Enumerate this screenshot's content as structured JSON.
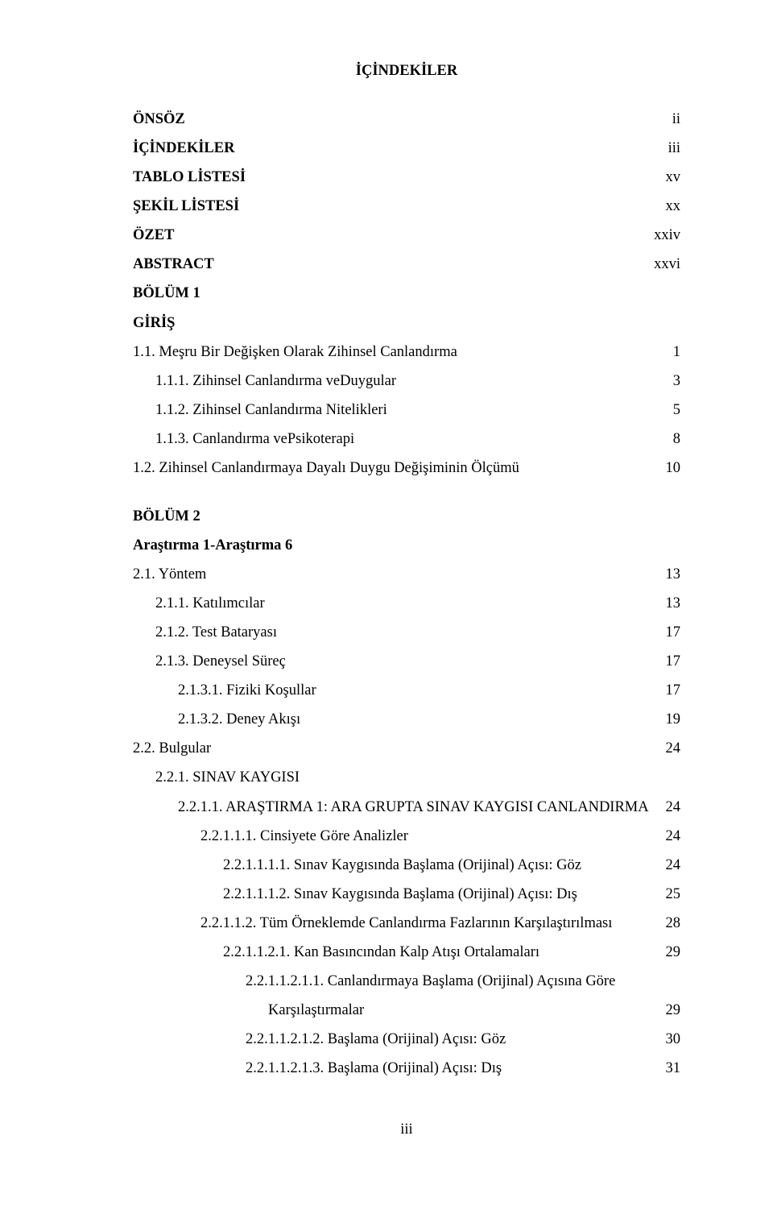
{
  "title": "İÇİNDEKİLER",
  "rows": [
    {
      "label": "ÖNSÖZ",
      "page": "ii",
      "bold": true,
      "indent": 0
    },
    {
      "label": "İÇİNDEKİLER",
      "page": "iii",
      "bold": true,
      "indent": 0
    },
    {
      "label": "TABLO LİSTESİ",
      "page": "xv",
      "bold": true,
      "indent": 0
    },
    {
      "label": "ŞEKİL LİSTESİ",
      "page": "xx",
      "bold": true,
      "indent": 0
    },
    {
      "label": "ÖZET",
      "page": "xxiv",
      "bold": true,
      "indent": 0
    },
    {
      "label": "ABSTRACT",
      "page": "xxvi",
      "bold": true,
      "indent": 0
    },
    {
      "label": "BÖLÜM 1",
      "page": "",
      "bold": true,
      "indent": 0
    },
    {
      "label": "GİRİŞ",
      "page": "",
      "bold": true,
      "indent": 0
    },
    {
      "label": "1.1. Meşru Bir Değişken Olarak Zihinsel Canlandırma",
      "page": "1",
      "bold": false,
      "indent": 0
    },
    {
      "label": "1.1.1. Zihinsel Canlandırma veDuygular",
      "page": "3",
      "bold": false,
      "indent": 1
    },
    {
      "label": "1.1.2. Zihinsel Canlandırma Nitelikleri",
      "page": "5",
      "bold": false,
      "indent": 1
    },
    {
      "label": "1.1.3. Canlandırma vePsikoterapi",
      "page": "8",
      "bold": false,
      "indent": 1
    },
    {
      "label": "1.2. Zihinsel Canlandırmaya Dayalı Duygu Değişiminin Ölçümü",
      "page": "10",
      "bold": false,
      "indent": 0
    },
    {
      "gap": true
    },
    {
      "label": "BÖLÜM 2",
      "page": "",
      "bold": true,
      "indent": 0
    },
    {
      "label": "Araştırma 1-Araştırma 6",
      "page": "",
      "bold": true,
      "indent": 0
    },
    {
      "label": "2.1. Yöntem",
      "page": "13",
      "bold": false,
      "indent": 0
    },
    {
      "label": "2.1.1. Katılımcılar",
      "page": "13",
      "bold": false,
      "indent": 1
    },
    {
      "label": "2.1.2. Test Bataryası",
      "page": "17",
      "bold": false,
      "indent": 1
    },
    {
      "label": "2.1.3. Deneysel Süreç",
      "page": "17",
      "bold": false,
      "indent": 1
    },
    {
      "label": "2.1.3.1. Fiziki Koşullar",
      "page": "17",
      "bold": false,
      "indent": 2
    },
    {
      "label": "2.1.3.2. Deney Akışı",
      "page": "19",
      "bold": false,
      "indent": 2
    },
    {
      "label": "2.2. Bulgular",
      "page": "24",
      "bold": false,
      "indent": 0
    },
    {
      "label": "2.2.1.    SINAV KAYGISI",
      "page": "",
      "bold": false,
      "indent": 1
    },
    {
      "label": "2.2.1.1. ARAŞTIRMA 1: ARA GRUPTA SINAV KAYGISI CANLANDIRMA",
      "page": "24",
      "bold": false,
      "indent": 2
    },
    {
      "label": "2.2.1.1.1. Cinsiyete Göre Analizler",
      "page": "24",
      "bold": false,
      "indent": 3
    },
    {
      "label": "2.2.1.1.1.1. Sınav Kaygısında Başlama (Orijinal) Açısı: Göz",
      "page": "24",
      "bold": false,
      "indent": 4
    },
    {
      "label": "2.2.1.1.1.2. Sınav Kaygısında Başlama (Orijinal) Açısı: Dış",
      "page": "25",
      "bold": false,
      "indent": 4
    },
    {
      "label": "2.2.1.1.2. Tüm Örneklemde Canlandırma Fazlarının Karşılaştırılması",
      "page": "28",
      "bold": false,
      "indent": 3
    },
    {
      "label": "2.2.1.1.2.1. Kan Basıncından Kalp Atışı Ortalamaları",
      "page": "29",
      "bold": false,
      "indent": 4
    },
    {
      "label": "2.2.1.1.2.1.1. Canlandırmaya Başlama (Orijinal) Açısına Göre",
      "page": "",
      "bold": false,
      "indent": 5
    },
    {
      "label": "Karşılaştırmalar",
      "page": "29",
      "bold": false,
      "indent": 6
    },
    {
      "label": "2.2.1.1.2.1.2. Başlama (Orijinal) Açısı: Göz",
      "page": "30",
      "bold": false,
      "indent": 5
    },
    {
      "label": "2.2.1.1.2.1.3. Başlama (Orijinal) Açısı: Dış",
      "page": "31",
      "bold": false,
      "indent": 5
    }
  ],
  "pageNumber": "iii"
}
